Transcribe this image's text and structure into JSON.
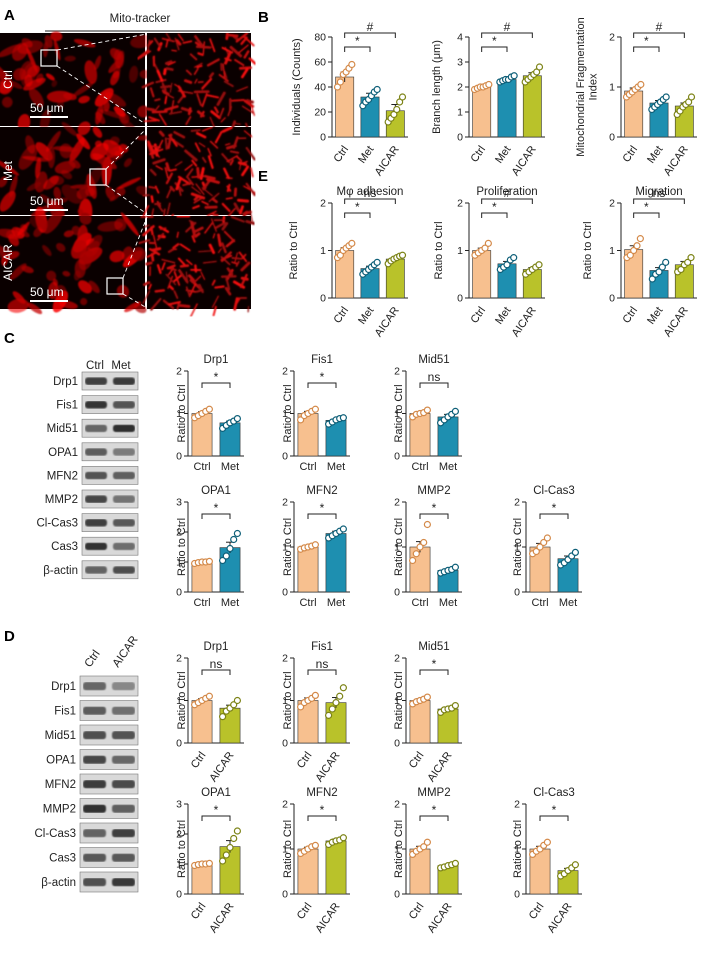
{
  "panels": {
    "A": "A",
    "B": "B",
    "C": "C",
    "D": "D",
    "E": "E"
  },
  "micro": {
    "title": "Mito-tracker",
    "rows": [
      "Ctrl",
      "Met",
      "AICAR"
    ],
    "scale": "50 μm"
  },
  "blots": {
    "C": {
      "lanes": [
        "Ctrl",
        "Met"
      ],
      "proteins": [
        "Drp1",
        "Fis1",
        "Mid51",
        "OPA1",
        "MFN2",
        "MMP2",
        "Cl-Cas3",
        "Cas3",
        "β-actin"
      ]
    },
    "D": {
      "lanes": [
        "Ctrl",
        "AICAR"
      ],
      "proteins": [
        "Drp1",
        "Fis1",
        "Mid51",
        "OPA1",
        "MFN2",
        "MMP2",
        "Cl-Cas3",
        "Cas3",
        "β-actin"
      ]
    }
  },
  "colors": {
    "ctrl": "#f7c08f",
    "met": "#1e8fb0",
    "aicar": "#b9c22a"
  },
  "chart_data": [
    {
      "id": "B1",
      "type": "bar",
      "title": "",
      "ylabel": "Individuals (Counts)",
      "ylim": [
        0,
        80
      ],
      "yticks": [
        0,
        20,
        40,
        60,
        80
      ],
      "categories": [
        "Ctrl",
        "Met",
        "AICAR"
      ],
      "values": [
        48,
        32,
        21
      ],
      "errors": [
        4,
        3,
        5
      ],
      "points": [
        [
          40,
          44,
          50,
          52,
          55,
          58
        ],
        [
          25,
          28,
          30,
          33,
          36,
          38
        ],
        [
          12,
          15,
          18,
          22,
          28,
          32
        ]
      ],
      "sig": [
        {
          "a": 0,
          "b": 1,
          "label": "*"
        },
        {
          "a": 0,
          "b": 2,
          "label": "#"
        }
      ]
    },
    {
      "id": "B2",
      "type": "bar",
      "title": "",
      "ylabel": "Branch length (μm)",
      "ylim": [
        0,
        4
      ],
      "yticks": [
        0,
        1,
        2,
        3,
        4
      ],
      "categories": [
        "Ctrl",
        "Met",
        "AICAR"
      ],
      "values": [
        2.0,
        2.3,
        2.45
      ],
      "errors": [
        0.05,
        0.06,
        0.12
      ],
      "points": [
        [
          1.9,
          1.95,
          2.0,
          2.0,
          2.05,
          2.1
        ],
        [
          2.2,
          2.25,
          2.3,
          2.3,
          2.4,
          2.45
        ],
        [
          2.2,
          2.3,
          2.4,
          2.5,
          2.6,
          2.8
        ]
      ],
      "sig": [
        {
          "a": 0,
          "b": 1,
          "label": "*"
        },
        {
          "a": 0,
          "b": 2,
          "label": "#"
        }
      ]
    },
    {
      "id": "B3",
      "type": "bar",
      "title": "",
      "ylabel": "Mitochondrial Fragmentation Index",
      "ylim": [
        0,
        2
      ],
      "yticks": [
        0,
        1,
        2
      ],
      "categories": [
        "Ctrl",
        "Met",
        "AICAR"
      ],
      "values": [
        0.92,
        0.68,
        0.62
      ],
      "errors": [
        0.06,
        0.05,
        0.06
      ],
      "points": [
        [
          0.8,
          0.85,
          0.9,
          0.95,
          1.0,
          1.05
        ],
        [
          0.55,
          0.6,
          0.65,
          0.7,
          0.75,
          0.8
        ],
        [
          0.45,
          0.52,
          0.6,
          0.65,
          0.7,
          0.8
        ]
      ],
      "sig": [
        {
          "a": 0,
          "b": 1,
          "label": "*"
        },
        {
          "a": 0,
          "b": 2,
          "label": "#"
        }
      ]
    },
    {
      "id": "E1",
      "type": "bar",
      "title": "Mφ adhesion",
      "ylabel": "Ratio to Ctrl",
      "ylim": [
        0,
        2
      ],
      "yticks": [
        0,
        1,
        2
      ],
      "categories": [
        "Ctrl",
        "Met",
        "AICAR"
      ],
      "values": [
        1.0,
        0.62,
        0.82
      ],
      "errors": [
        0.06,
        0.05,
        0.04
      ],
      "points": [
        [
          0.85,
          0.9,
          1.0,
          1.05,
          1.1,
          1.15
        ],
        [
          0.5,
          0.55,
          0.6,
          0.65,
          0.7,
          0.75
        ],
        [
          0.72,
          0.78,
          0.82,
          0.85,
          0.88,
          0.9
        ]
      ],
      "sig": [
        {
          "a": 0,
          "b": 1,
          "label": "*"
        },
        {
          "a": 0,
          "b": 2,
          "label": "ns"
        }
      ]
    },
    {
      "id": "E2",
      "type": "bar",
      "title": "Proliferation",
      "ylabel": "Ratio to Ctrl",
      "ylim": [
        0,
        2
      ],
      "yticks": [
        0,
        1,
        2
      ],
      "categories": [
        "Ctrl",
        "Met",
        "AICAR"
      ],
      "values": [
        1.0,
        0.72,
        0.6
      ],
      "errors": [
        0.05,
        0.05,
        0.04
      ],
      "points": [
        [
          0.9,
          0.95,
          1.0,
          1.05,
          1.15
        ],
        [
          0.6,
          0.65,
          0.7,
          0.8,
          0.85
        ],
        [
          0.5,
          0.55,
          0.6,
          0.65,
          0.7
        ]
      ],
      "sig": [
        {
          "a": 0,
          "b": 1,
          "label": "*"
        },
        {
          "a": 0,
          "b": 2,
          "label": "#"
        }
      ]
    },
    {
      "id": "E3",
      "type": "bar",
      "title": "Migration",
      "ylabel": "Ratio to Ctrl",
      "ylim": [
        0,
        2
      ],
      "yticks": [
        0,
        1,
        2
      ],
      "categories": [
        "Ctrl",
        "Met",
        "AICAR"
      ],
      "values": [
        1.02,
        0.58,
        0.7
      ],
      "errors": [
        0.08,
        0.06,
        0.07
      ],
      "points": [
        [
          0.85,
          0.9,
          1.0,
          1.1,
          1.25
        ],
        [
          0.4,
          0.5,
          0.55,
          0.65,
          0.75
        ],
        [
          0.55,
          0.6,
          0.7,
          0.75,
          0.85
        ]
      ],
      "sig": [
        {
          "a": 0,
          "b": 1,
          "label": "*"
        },
        {
          "a": 0,
          "b": 2,
          "label": "ns"
        }
      ]
    },
    {
      "id": "C1",
      "type": "bar",
      "title": "Drp1",
      "ylabel": "Ratio to Ctrl",
      "ylim": [
        0,
        2
      ],
      "yticks": [
        0,
        1,
        2
      ],
      "categories": [
        "Ctrl",
        "Met"
      ],
      "values": [
        1.0,
        0.78
      ],
      "errors": [
        0.04,
        0.04
      ],
      "points": [
        [
          0.9,
          0.95,
          1.0,
          1.05,
          1.1
        ],
        [
          0.65,
          0.72,
          0.78,
          0.82,
          0.88
        ]
      ],
      "sig": [
        {
          "a": 0,
          "b": 1,
          "label": "*"
        }
      ]
    },
    {
      "id": "C2",
      "type": "bar",
      "title": "Fis1",
      "ylabel": "Ratio to Ctrl",
      "ylim": [
        0,
        2
      ],
      "yticks": [
        0,
        1,
        2
      ],
      "categories": [
        "Ctrl",
        "Met"
      ],
      "values": [
        1.0,
        0.84
      ],
      "errors": [
        0.05,
        0.03
      ],
      "points": [
        [
          0.85,
          0.95,
          1.0,
          1.05,
          1.1
        ],
        [
          0.75,
          0.8,
          0.85,
          0.88,
          0.9
        ]
      ],
      "sig": [
        {
          "a": 0,
          "b": 1,
          "label": "*"
        }
      ]
    },
    {
      "id": "C3",
      "type": "bar",
      "title": "Mid51",
      "ylabel": "Ratio to Ctrl",
      "ylim": [
        0,
        2
      ],
      "yticks": [
        0,
        1,
        2
      ],
      "categories": [
        "Ctrl",
        "Met"
      ],
      "values": [
        1.0,
        0.92
      ],
      "errors": [
        0.04,
        0.06
      ],
      "points": [
        [
          0.92,
          0.98,
          1.0,
          1.02,
          1.08
        ],
        [
          0.78,
          0.85,
          0.92,
          0.98,
          1.05
        ]
      ],
      "sig": [
        {
          "a": 0,
          "b": 1,
          "label": "ns"
        }
      ]
    },
    {
      "id": "C4",
      "type": "bar",
      "title": "OPA1",
      "ylabel": "Ratio to Ctrl",
      "ylim": [
        0,
        3
      ],
      "yticks": [
        0,
        1,
        2,
        3
      ],
      "categories": [
        "Ctrl",
        "Met"
      ],
      "values": [
        1.0,
        1.48
      ],
      "errors": [
        0.03,
        0.18
      ],
      "points": [
        [
          0.95,
          0.98,
          1.0,
          1.0,
          1.02
        ],
        [
          1.05,
          1.2,
          1.45,
          1.75,
          1.95
        ]
      ],
      "sig": [
        {
          "a": 0,
          "b": 1,
          "label": "*"
        }
      ]
    },
    {
      "id": "C5",
      "type": "bar",
      "title": "MFN2",
      "ylabel": "Ratio to Ctrl",
      "ylim": [
        0,
        2
      ],
      "yticks": [
        0,
        1,
        2
      ],
      "categories": [
        "Ctrl",
        "Met"
      ],
      "values": [
        1.0,
        1.3
      ],
      "errors": [
        0.03,
        0.05
      ],
      "points": [
        [
          0.95,
          0.98,
          1.0,
          1.02,
          1.05
        ],
        [
          1.2,
          1.25,
          1.3,
          1.35,
          1.4
        ]
      ],
      "sig": [
        {
          "a": 0,
          "b": 1,
          "label": "*"
        }
      ]
    },
    {
      "id": "C6",
      "type": "bar",
      "title": "",
      "ylabel": "Ratio to Ctrl",
      "ylim": [
        0,
        2
      ],
      "yticks": [
        0,
        1,
        2
      ],
      "categories": [
        "Ctrl",
        "Met"
      ],
      "values": [
        1.0,
        0.48
      ],
      "errors": [
        0.12,
        0.03
      ],
      "points": [
        [
          0.7,
          0.85,
          1.0,
          1.1,
          1.5
        ],
        [
          0.42,
          0.45,
          0.48,
          0.5,
          0.55
        ]
      ],
      "sig": [
        {
          "a": 0,
          "b": 1,
          "label": "*"
        }
      ],
      "label": "MMP2"
    },
    {
      "id": "C7",
      "type": "bar",
      "title": "Cl-Cas3",
      "ylabel": "Ratio to Ctrl",
      "ylim": [
        0,
        2
      ],
      "yticks": [
        0,
        1,
        2
      ],
      "categories": [
        "Ctrl",
        "Met"
      ],
      "values": [
        1.0,
        0.74
      ],
      "errors": [
        0.08,
        0.06
      ],
      "points": [
        [
          0.85,
          0.9,
          1.0,
          1.1,
          1.2
        ],
        [
          0.6,
          0.65,
          0.72,
          0.8,
          0.88
        ]
      ],
      "sig": [
        {
          "a": 0,
          "b": 1,
          "label": "*"
        }
      ]
    },
    {
      "id": "D1",
      "type": "bar",
      "title": "Drp1",
      "ylabel": "Ratio to Ctrl",
      "ylim": [
        0,
        2
      ],
      "yticks": [
        0,
        1,
        2
      ],
      "categories": [
        "Ctrl",
        "AICAR"
      ],
      "values": [
        1.0,
        0.82
      ],
      "errors": [
        0.04,
        0.07
      ],
      "points": [
        [
          0.9,
          0.95,
          1.0,
          1.05,
          1.1
        ],
        [
          0.62,
          0.75,
          0.82,
          0.9,
          1.0
        ]
      ],
      "sig": [
        {
          "a": 0,
          "b": 1,
          "label": "ns"
        }
      ]
    },
    {
      "id": "D2",
      "type": "bar",
      "title": "Fis1",
      "ylabel": "Ratio to Ctrl",
      "ylim": [
        0,
        2
      ],
      "yticks": [
        0,
        1,
        2
      ],
      "categories": [
        "Ctrl",
        "AICAR"
      ],
      "values": [
        1.0,
        0.95
      ],
      "errors": [
        0.06,
        0.12
      ],
      "points": [
        [
          0.85,
          0.95,
          1.0,
          1.05,
          1.12
        ],
        [
          0.65,
          0.8,
          0.95,
          1.1,
          1.3
        ]
      ],
      "sig": [
        {
          "a": 0,
          "b": 1,
          "label": "ns"
        }
      ]
    },
    {
      "id": "D3",
      "type": "bar",
      "title": "Mid51",
      "ylabel": "Ratio to Ctrl",
      "ylim": [
        0,
        2
      ],
      "yticks": [
        0,
        1,
        2
      ],
      "categories": [
        "Ctrl",
        "AICAR"
      ],
      "values": [
        1.0,
        0.8
      ],
      "errors": [
        0.04,
        0.03
      ],
      "points": [
        [
          0.92,
          0.97,
          1.0,
          1.03,
          1.08
        ],
        [
          0.72,
          0.78,
          0.8,
          0.82,
          0.88
        ]
      ],
      "sig": [
        {
          "a": 0,
          "b": 1,
          "label": "*"
        }
      ]
    },
    {
      "id": "D4",
      "type": "bar",
      "title": "OPA1",
      "ylabel": "Ratio to Ctrl",
      "ylim": [
        0,
        3
      ],
      "yticks": [
        0,
        1,
        2,
        3
      ],
      "categories": [
        "Ctrl",
        "AICAR"
      ],
      "values": [
        1.0,
        1.58
      ],
      "errors": [
        0.03,
        0.2
      ],
      "points": [
        [
          0.95,
          0.98,
          1.0,
          1.0,
          1.02
        ],
        [
          1.1,
          1.3,
          1.55,
          1.85,
          2.1
        ]
      ],
      "sig": [
        {
          "a": 0,
          "b": 1,
          "label": "*"
        }
      ]
    },
    {
      "id": "D5",
      "type": "bar",
      "title": "MFN2",
      "ylabel": "Ratio to Ctrl",
      "ylim": [
        0,
        2
      ],
      "yticks": [
        0,
        1,
        2
      ],
      "categories": [
        "Ctrl",
        "AICAR"
      ],
      "values": [
        1.0,
        1.18
      ],
      "errors": [
        0.04,
        0.04
      ],
      "points": [
        [
          0.9,
          0.95,
          1.0,
          1.05,
          1.08
        ],
        [
          1.1,
          1.15,
          1.18,
          1.2,
          1.25
        ]
      ],
      "sig": [
        {
          "a": 0,
          "b": 1,
          "label": "*"
        }
      ]
    },
    {
      "id": "D6",
      "type": "bar",
      "title": "MMP2",
      "ylabel": "Ratio to Ctrl",
      "ylim": [
        0,
        2
      ],
      "yticks": [
        0,
        1,
        2
      ],
      "categories": [
        "Ctrl",
        "AICAR"
      ],
      "values": [
        1.0,
        0.63
      ],
      "errors": [
        0.06,
        0.02
      ],
      "points": [
        [
          0.88,
          0.95,
          1.0,
          1.05,
          1.15
        ],
        [
          0.58,
          0.6,
          0.63,
          0.65,
          0.68
        ]
      ],
      "sig": [
        {
          "a": 0,
          "b": 1,
          "label": "*"
        }
      ]
    },
    {
      "id": "D7",
      "type": "bar",
      "title": "Cl-Cas3",
      "ylabel": "Ratio to Ctrl",
      "ylim": [
        0,
        2
      ],
      "yticks": [
        0,
        1,
        2
      ],
      "categories": [
        "Ctrl",
        "AICAR"
      ],
      "values": [
        1.0,
        0.52
      ],
      "errors": [
        0.06,
        0.05
      ],
      "points": [
        [
          0.88,
          0.95,
          1.0,
          1.08,
          1.15
        ],
        [
          0.4,
          0.45,
          0.52,
          0.58,
          0.65
        ]
      ],
      "sig": [
        {
          "a": 0,
          "b": 1,
          "label": "*"
        }
      ]
    }
  ]
}
